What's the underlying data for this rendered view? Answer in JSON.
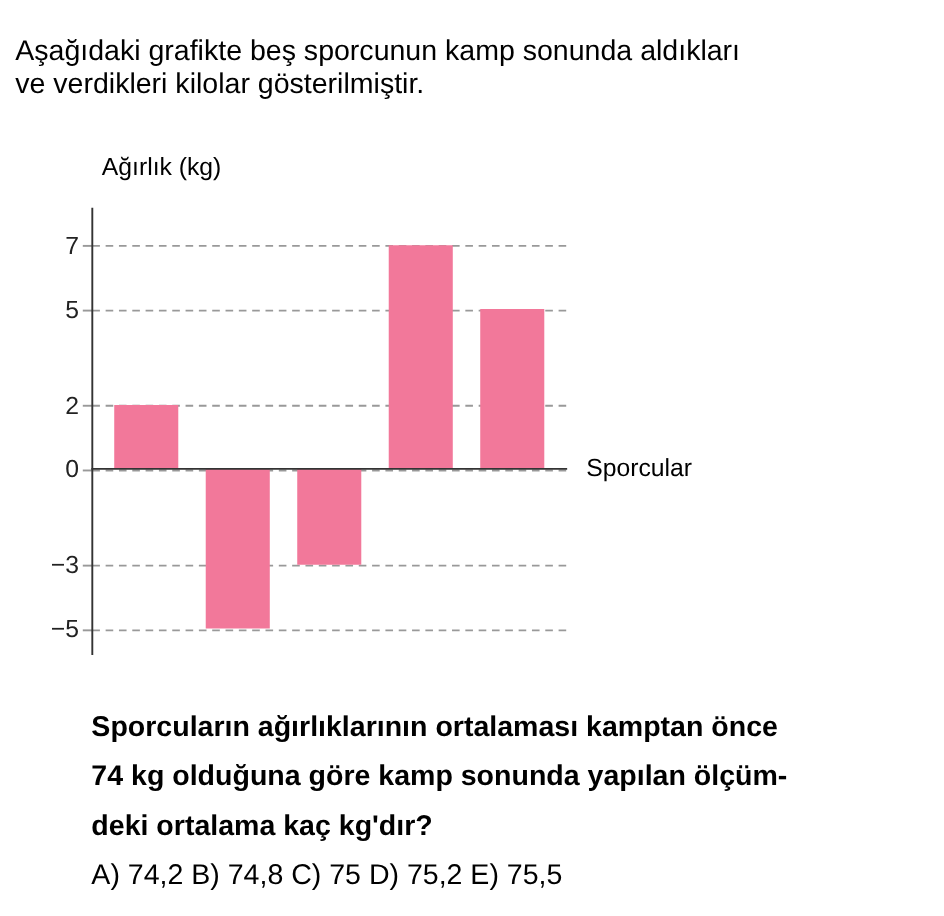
{
  "chart_data": {
    "type": "bar",
    "title": [
      "Aşağıdaki grafikte beş sporcunun kamp sonunda aldıkları",
      "ve verdikleri kilolar gösterilmiştir."
    ],
    "xlabel": "Sporcular",
    "ylabel": "Ağırlık (kg)",
    "categories": [
      null,
      null,
      null,
      null,
      null
    ],
    "values": [
      2,
      -5,
      -3,
      7,
      5
    ],
    "color": "#f2789a",
    "ylim": [
      -5.8,
      8.2
    ],
    "yticks": [
      -5,
      -3,
      0,
      2,
      5,
      7
    ],
    "grid": "y",
    "tick_labels": "y",
    "annotations": [
      "Sporcuların ağırlıklarının ortalaması kamptan önce",
      "74 kg olduğuna göre kamp sonunda yapılan ölçüm-",
      "deki ortalama kaç kg'dır?",
      "A) 74,2 B) 74,8 C) 75 D) 75,2 E) 75,5"
    ]
  }
}
